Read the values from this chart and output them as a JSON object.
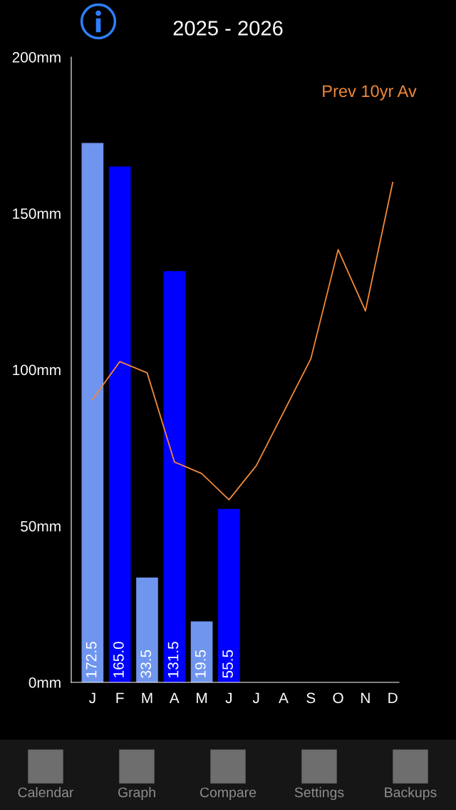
{
  "chart_data": {
    "type": "bar",
    "title": "2025 - 2026",
    "categories": [
      "J",
      "F",
      "M",
      "A",
      "M",
      "J",
      "J",
      "A",
      "S",
      "O",
      "N",
      "D"
    ],
    "series": [
      {
        "colors": [
          "#6f95ee",
          "#0000ff",
          "#6f95ee",
          "#0000ff",
          "#6f95ee",
          "#0000ff",
          "#6f95ee",
          "#0000ff",
          "#6f95ee",
          "#0000ff",
          "#6f95ee",
          "#0000ff"
        ],
        "values": [
          172.5,
          165.0,
          33.5,
          131.5,
          19.5,
          55.5,
          null,
          null,
          null,
          null,
          null,
          null
        ],
        "value_labels": [
          "172.5",
          "165.0",
          "33.5",
          "131.5",
          "19.5",
          "55.5",
          null,
          null,
          null,
          null,
          null,
          null
        ]
      },
      {
        "type": "line",
        "name": "Prev 10yr Av",
        "color": "#f0883a",
        "values": [
          90.5,
          102.6,
          99,
          70.5,
          66.8,
          58.4,
          69.3,
          86.4,
          103.5,
          138.4,
          118.8,
          159.9
        ]
      }
    ],
    "ylim": [
      0,
      200
    ],
    "yticks": [
      {
        "value": 0,
        "label": "0mm"
      },
      {
        "value": 50,
        "label": "50mm"
      },
      {
        "value": 100,
        "label": "100mm"
      },
      {
        "value": 150,
        "label": "150mm"
      },
      {
        "value": 200,
        "label": "200mm"
      }
    ],
    "legend": "top right",
    "grid": false,
    "annotations": [
      "Calendar",
      "Graph",
      "Compare",
      "Settings",
      "Backups"
    ]
  }
}
